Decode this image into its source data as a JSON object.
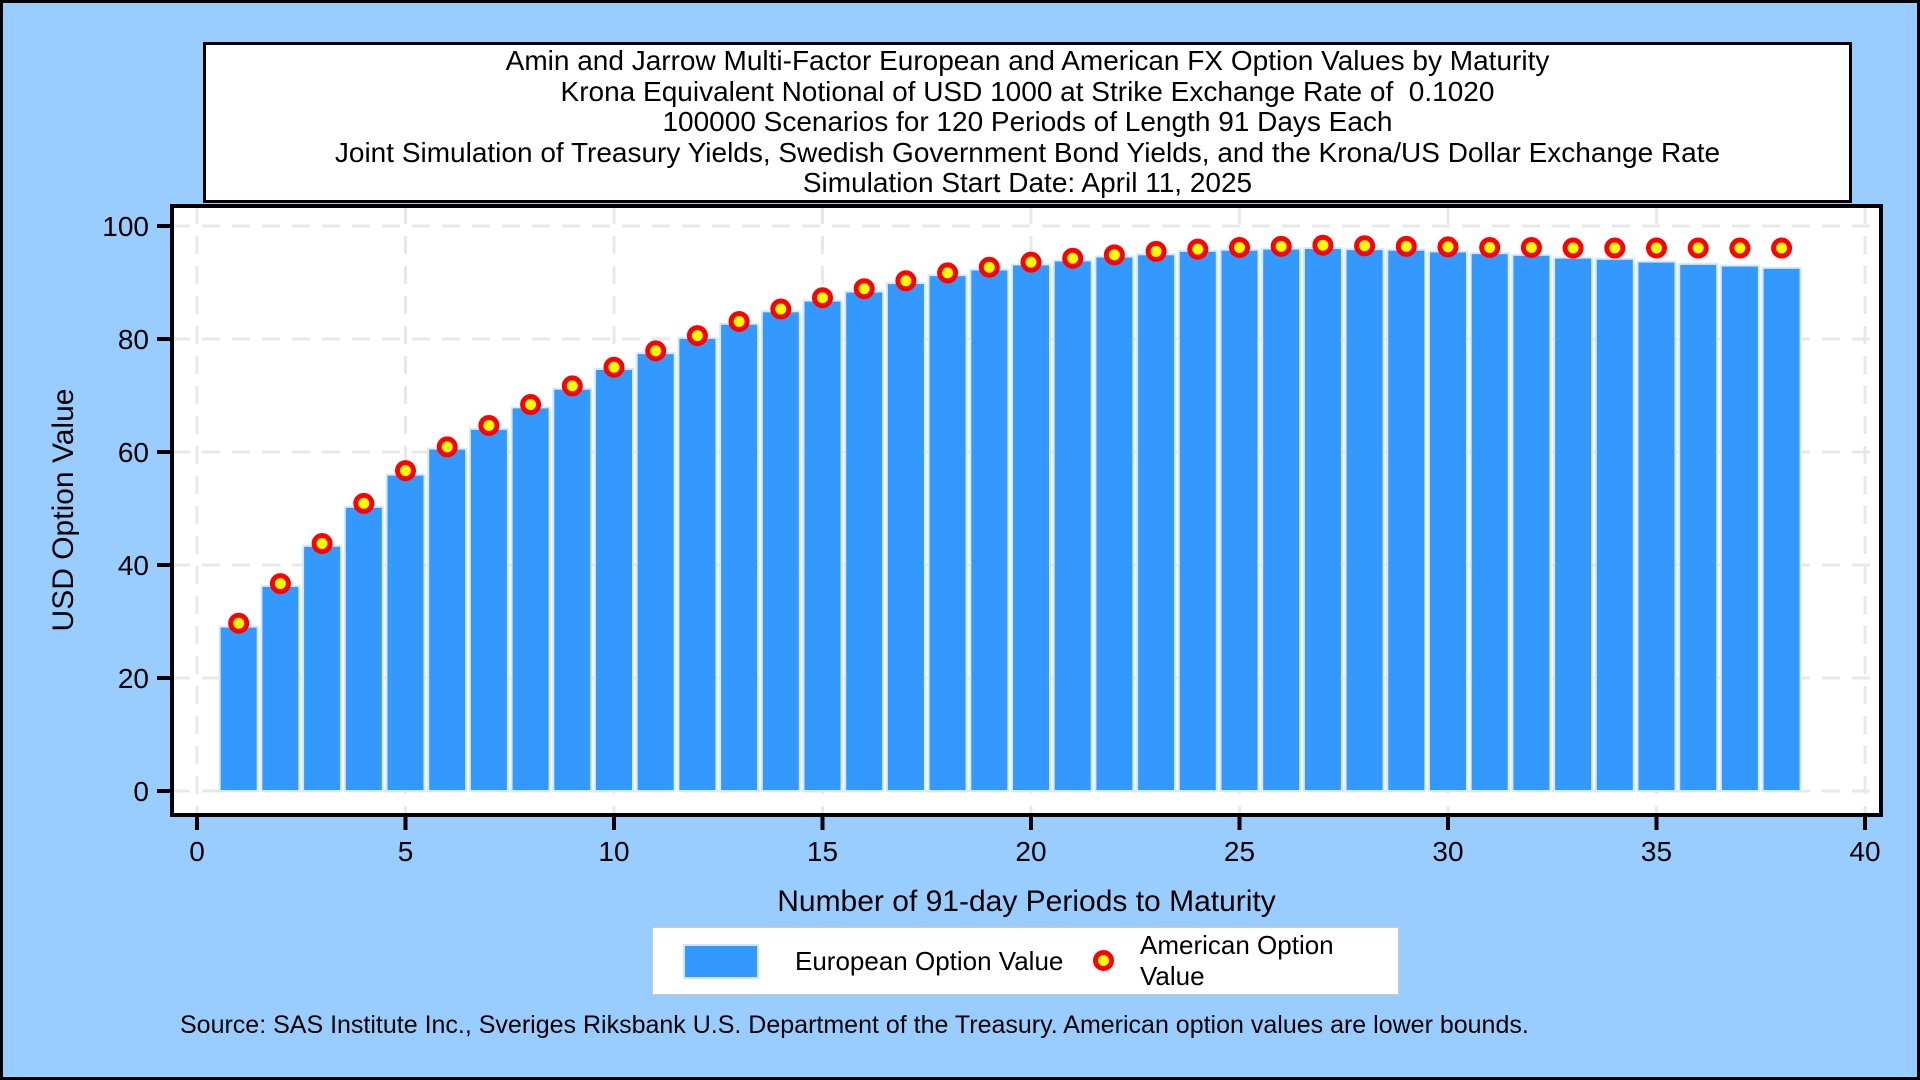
{
  "page": {
    "title_lines": [
      "Amin and Jarrow Multi-Factor European and American FX Option Values by Maturity",
      "Krona Equivalent Notional of USD 1000 at Strike Exchange Rate of  0.1020",
      "100000 Scenarios for 120 Periods of Length 91 Days Each",
      "Joint Simulation of Treasury Yields, Swedish Government Bond Yields, and the Krona/US Dollar Exchange Rate",
      "Simulation Start Date: April 11, 2025"
    ],
    "footer": "Source: SAS Institute Inc., Sveriges Riksbank U.S. Department of the Treasury. American option values are lower bounds.",
    "background_color": "#99CCFF"
  },
  "legend": {
    "items": [
      {
        "label": "European Option Value",
        "swatch": "bar",
        "color": "#3399FF"
      },
      {
        "label": "American Option Value",
        "swatch": "circle-marker",
        "marker_fill": "#FFFF00",
        "marker_stroke": "#FF0000"
      }
    ]
  },
  "chart_data": {
    "type": "bar",
    "title": "Amin and Jarrow Multi-Factor European and American FX Option Values by Maturity",
    "xlabel": "Number of 91-day Periods to Maturity",
    "ylabel": "USD Option Value",
    "xlim": [
      0,
      40
    ],
    "ylim": [
      0,
      100
    ],
    "xticks": [
      0,
      5,
      10,
      15,
      20,
      25,
      30,
      35,
      40
    ],
    "yticks": [
      0,
      20,
      40,
      60,
      80,
      100
    ],
    "grid": "dashed",
    "grid_color": "#E8E8E8",
    "plot_background": "#FFFFFF",
    "x": [
      1,
      2,
      3,
      4,
      5,
      6,
      7,
      8,
      9,
      10,
      11,
      12,
      13,
      14,
      15,
      16,
      17,
      18,
      19,
      20,
      21,
      22,
      23,
      24,
      25,
      26,
      27,
      28,
      29,
      30,
      31,
      32,
      33,
      34,
      35,
      36,
      37,
      38
    ],
    "series": [
      {
        "name": "European Option Value",
        "render": "bar",
        "color": "#3399FF",
        "bar_edge_color": "#D6EAFB",
        "values": [
          29.1,
          36.3,
          43.4,
          50.3,
          56.0,
          60.6,
          64.1,
          67.9,
          71.2,
          74.7,
          77.5,
          80.2,
          82.7,
          84.9,
          86.8,
          88.4,
          89.9,
          91.3,
          92.3,
          93.2,
          93.9,
          94.6,
          95.0,
          95.6,
          95.8,
          96.0,
          96.1,
          95.9,
          95.8,
          95.5,
          95.2,
          94.9,
          94.4,
          94.2,
          93.7,
          93.3,
          93.0,
          92.6
        ]
      },
      {
        "name": "American Option Value",
        "render": "scatter",
        "marker_fill": "#FFFF00",
        "marker_stroke": "#FF0000",
        "values": [
          29.7,
          36.7,
          43.8,
          50.9,
          56.7,
          60.9,
          64.7,
          68.4,
          71.7,
          75.0,
          77.9,
          80.6,
          83.1,
          85.3,
          87.3,
          88.9,
          90.3,
          91.7,
          92.7,
          93.6,
          94.3,
          94.9,
          95.5,
          95.9,
          96.2,
          96.4,
          96.6,
          96.5,
          96.4,
          96.3,
          96.2,
          96.2,
          96.1,
          96.1,
          96.1,
          96.1,
          96.1,
          96.1
        ]
      }
    ]
  }
}
